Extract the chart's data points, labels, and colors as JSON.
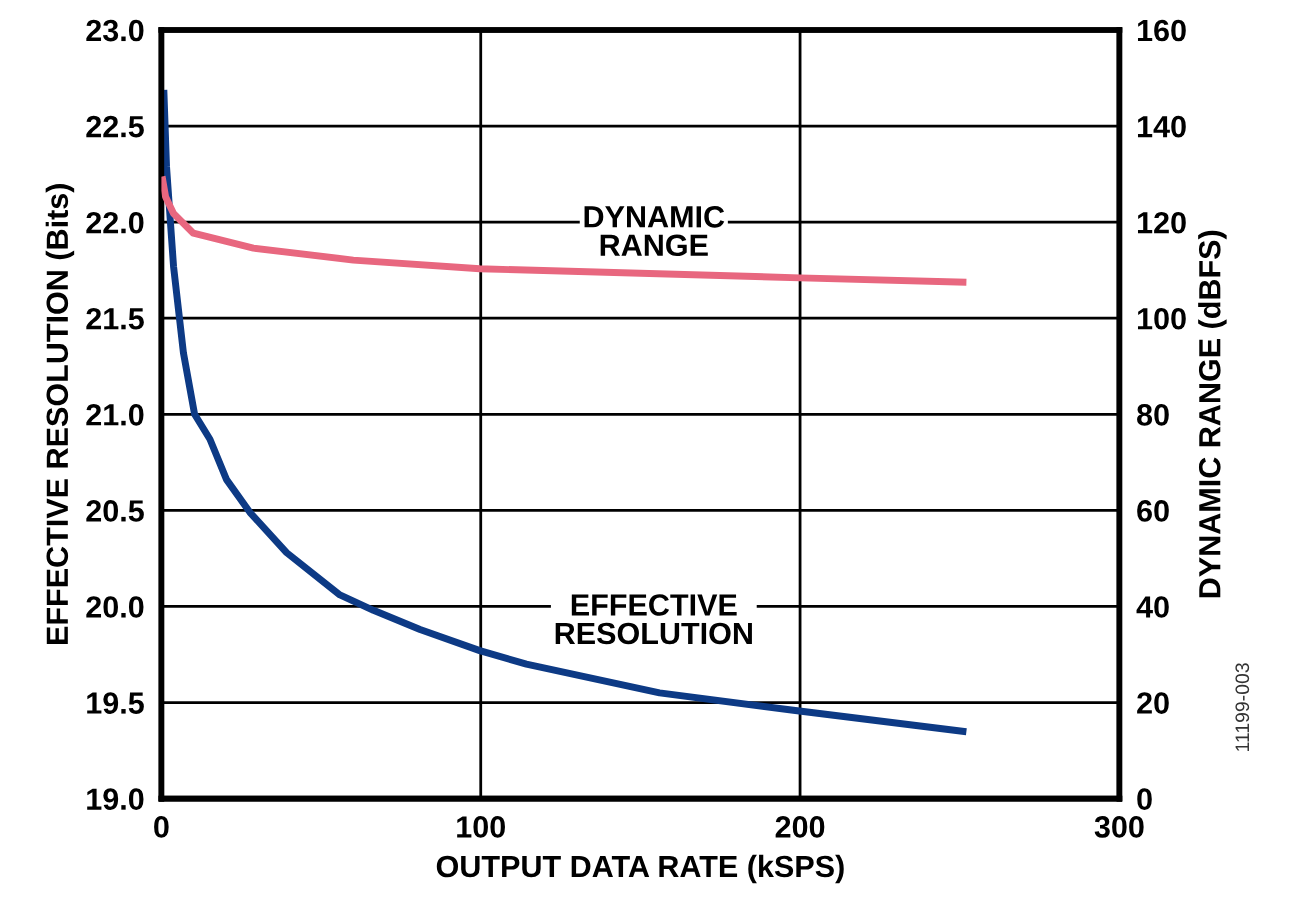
{
  "chart_data": {
    "type": "line",
    "xlabel": "OUTPUT DATA RATE (kSPS)",
    "ylabel": "EFFECTIVE RESOLUTION (Bits)",
    "y2label": "DYNAMIC RANGE (dBFS)",
    "xlim": [
      0,
      300
    ],
    "xticks": [
      0,
      100,
      200,
      300
    ],
    "ylim": [
      19.0,
      23.0
    ],
    "yticks": [
      {
        "value": 19.0,
        "label": "19.0"
      },
      {
        "value": 19.5,
        "label": "19.5"
      },
      {
        "value": 20.0,
        "label": "20.0"
      },
      {
        "value": 20.5,
        "label": "20.5"
      },
      {
        "value": 21.0,
        "label": "21.0"
      },
      {
        "value": 21.5,
        "label": "21.5"
      },
      {
        "value": 22.0,
        "label": "22.0"
      },
      {
        "value": 22.5,
        "label": "22.5"
      },
      {
        "value": 23.0,
        "label": "23.0"
      }
    ],
    "y2lim": [
      0,
      160
    ],
    "y2ticks": [
      0,
      20,
      40,
      60,
      80,
      100,
      120,
      140,
      160
    ],
    "grid": true,
    "series": [
      {
        "color": "#0d3a85",
        "axis": "y",
        "x": [
          0.8,
          1.6,
          3.8,
          6.9,
          10.4,
          15.2,
          20.4,
          27.7,
          39.2,
          55.9,
          66.4,
          81,
          99.7,
          114.3,
          156,
          197.9,
          251
        ],
        "values": [
          22.67,
          22.29,
          21.77,
          21.32,
          21.0,
          20.87,
          20.66,
          20.49,
          20.28,
          20.06,
          19.98,
          19.88,
          19.77,
          19.7,
          19.55,
          19.46,
          19.35
        ]
      },
      {
        "color": "#e8677f",
        "axis": "y2",
        "x": [
          0.4,
          1.3,
          3.8,
          10,
          28.8,
          60.1,
          99.7,
          200,
          251
        ],
        "values": [
          128.8,
          125.3,
          121.8,
          117.7,
          114.6,
          112.1,
          110.3,
          108.4,
          107.5
        ]
      }
    ],
    "annotations": [
      "DYNAMIC\nRANGE",
      "EFFECTIVE\nRESOLUTION",
      "11199-003"
    ]
  }
}
